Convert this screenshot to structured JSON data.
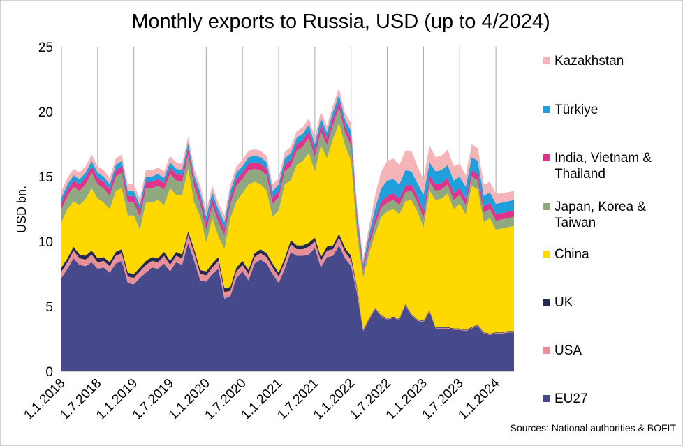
{
  "chart_data": {
    "type": "stacked-area",
    "title": "Monthly exports to Russia, USD (up to 4/2024)",
    "y_label": "USD bn.",
    "source": "Sources: National authorities & BOFIT",
    "categories": [
      "1.1.2018",
      null,
      null,
      null,
      null,
      null,
      "1.7.2018",
      null,
      null,
      null,
      null,
      null,
      "1.1.2019",
      null,
      null,
      null,
      null,
      null,
      "1.7.2019",
      null,
      null,
      null,
      null,
      null,
      "1.1.2020",
      null,
      null,
      null,
      null,
      null,
      "1.7.2020",
      null,
      null,
      null,
      null,
      null,
      "1.1.2021",
      null,
      null,
      null,
      null,
      null,
      "1.7.2021",
      null,
      null,
      null,
      null,
      null,
      "1.1.2022",
      null,
      null,
      null,
      null,
      null,
      "1.7.2022",
      null,
      null,
      null,
      null,
      null,
      "1.1.2023",
      null,
      null,
      null,
      null,
      null,
      "1.7.2023",
      null,
      null,
      null,
      null,
      null,
      "1.1.2024",
      null,
      null,
      null
    ],
    "ylim": [
      0,
      25
    ],
    "yticks": [
      0,
      5,
      10,
      15,
      20,
      25
    ],
    "grid": true,
    "series": [
      {
        "name": "EU27",
        "color": "#474a8a",
        "values": [
          7.2,
          7.9,
          8.7,
          8.2,
          8.1,
          8.4,
          7.9,
          8.0,
          7.6,
          8.3,
          8.5,
          6.8,
          6.7,
          7.2,
          7.6,
          8.0,
          7.9,
          8.3,
          7.7,
          8.4,
          8.2,
          9.9,
          8.5,
          7.0,
          6.9,
          7.5,
          7.9,
          5.6,
          5.8,
          7.2,
          7.7,
          7.0,
          8.3,
          8.6,
          8.3,
          7.5,
          6.8,
          7.9,
          9.2,
          8.9,
          8.9,
          9.0,
          9.5,
          8.0,
          8.8,
          8.9,
          9.7,
          8.7,
          8.1,
          6.0,
          3.1,
          4.0,
          4.8,
          4.2,
          4.0,
          4.1,
          4.0,
          5.1,
          4.3,
          3.9,
          3.8,
          4.6,
          3.3,
          3.3,
          3.3,
          3.2,
          3.2,
          3.1,
          3.3,
          3.5,
          2.9,
          2.8,
          2.9,
          2.9,
          3.0,
          3.0
        ]
      },
      {
        "name": "USA",
        "color": "#e8909a",
        "values": [
          0.5,
          0.5,
          0.6,
          0.5,
          0.5,
          0.6,
          0.5,
          0.5,
          0.5,
          0.6,
          0.6,
          0.5,
          0.5,
          0.5,
          0.6,
          0.5,
          0.5,
          0.6,
          0.5,
          0.5,
          0.5,
          0.6,
          0.6,
          0.5,
          0.5,
          0.5,
          0.6,
          0.5,
          0.4,
          0.5,
          0.5,
          0.5,
          0.5,
          0.5,
          0.5,
          0.5,
          0.5,
          0.5,
          0.6,
          0.5,
          0.5,
          0.6,
          0.5,
          0.5,
          0.5,
          0.5,
          0.6,
          0.5,
          0.5,
          0.3,
          0.05,
          0.05,
          0.05,
          0.05,
          0.05,
          0.05,
          0.05,
          0.05,
          0.05,
          0.05,
          0.05,
          0.05,
          0.05,
          0.05,
          0.05,
          0.05,
          0.05,
          0.05,
          0.05,
          0.05,
          0.05,
          0.05,
          0.05,
          0.05,
          0.05,
          0.05
        ]
      },
      {
        "name": "UK",
        "color": "#252850",
        "values": [
          0.3,
          0.3,
          0.3,
          0.3,
          0.3,
          0.3,
          0.3,
          0.3,
          0.3,
          0.3,
          0.3,
          0.3,
          0.3,
          0.3,
          0.3,
          0.3,
          0.3,
          0.3,
          0.3,
          0.3,
          0.3,
          0.3,
          0.3,
          0.3,
          0.3,
          0.3,
          0.3,
          0.3,
          0.3,
          0.3,
          0.3,
          0.3,
          0.3,
          0.3,
          0.3,
          0.3,
          0.3,
          0.3,
          0.3,
          0.3,
          0.3,
          0.3,
          0.3,
          0.3,
          0.3,
          0.3,
          0.3,
          0.3,
          0.3,
          0.15,
          0.05,
          0.05,
          0.05,
          0.05,
          0.05,
          0.05,
          0.05,
          0.05,
          0.05,
          0.05,
          0.05,
          0.05,
          0.05,
          0.05,
          0.05,
          0.05,
          0.05,
          0.05,
          0.05,
          0.05,
          0.05,
          0.05,
          0.05,
          0.05,
          0.05,
          0.05
        ]
      },
      {
        "name": "China",
        "color": "#ffd800",
        "values": [
          3.5,
          3.8,
          3.5,
          3.8,
          4.4,
          4.8,
          4.6,
          4.2,
          4.1,
          4.7,
          4.7,
          4.4,
          4.5,
          2.9,
          4.5,
          4.2,
          4.5,
          3.6,
          5.6,
          4.4,
          4.6,
          4.8,
          3.6,
          4.1,
          2.2,
          3.5,
          1.6,
          3.0,
          5.3,
          5.1,
          5.2,
          6.6,
          5.5,
          5.0,
          4.8,
          3.6,
          4.8,
          5.7,
          4.6,
          6.2,
          6.5,
          6.9,
          5.1,
          8.6,
          6.8,
          8.2,
          8.5,
          7.9,
          7.3,
          4.0,
          4.0,
          5.0,
          5.7,
          7.6,
          8.2,
          8.3,
          8.0,
          7.9,
          8.8,
          8.3,
          7.2,
          9.2,
          9.8,
          9.9,
          10.3,
          9.2,
          9.6,
          8.9,
          10.9,
          10.4,
          8.5,
          8.9,
          7.9,
          8.0,
          8.0,
          8.1
        ]
      },
      {
        "name": "Japan, Korea & Taiwan",
        "color": "#8fa880",
        "values": [
          1.0,
          1.0,
          1.1,
          1.1,
          1.1,
          1.2,
          1.1,
          1.1,
          1.0,
          1.1,
          1.2,
          1.0,
          1.0,
          1.0,
          1.1,
          1.1,
          1.1,
          1.2,
          1.1,
          1.1,
          1.0,
          1.1,
          1.2,
          1.0,
          1.0,
          1.0,
          1.1,
          1.1,
          1.1,
          1.2,
          1.1,
          1.1,
          1.0,
          1.1,
          1.2,
          1.0,
          1.0,
          1.0,
          1.1,
          1.1,
          1.1,
          1.2,
          1.1,
          1.1,
          1.0,
          1.1,
          1.2,
          1.0,
          1.2,
          0.9,
          0.5,
          0.6,
          0.7,
          0.7,
          0.7,
          0.7,
          0.7,
          0.7,
          0.7,
          0.7,
          0.7,
          0.7,
          0.7,
          0.7,
          0.7,
          0.7,
          0.7,
          0.7,
          0.7,
          0.7,
          0.7,
          0.7,
          0.7,
          0.7,
          0.7,
          0.7
        ]
      },
      {
        "name": "India, Vietnam & Thailand",
        "color": "#e0338a",
        "values": [
          0.5,
          0.5,
          0.5,
          0.5,
          0.5,
          0.5,
          0.5,
          0.5,
          0.5,
          0.5,
          0.5,
          0.5,
          0.5,
          0.5,
          0.5,
          0.5,
          0.5,
          0.5,
          0.5,
          0.5,
          0.5,
          0.5,
          0.5,
          0.5,
          0.5,
          0.5,
          0.5,
          0.5,
          0.5,
          0.5,
          0.5,
          0.5,
          0.5,
          0.5,
          0.5,
          0.5,
          0.5,
          0.5,
          0.5,
          0.5,
          0.5,
          0.5,
          0.5,
          0.5,
          0.5,
          0.5,
          0.5,
          0.5,
          0.5,
          0.4,
          0.3,
          0.4,
          0.5,
          0.5,
          0.5,
          0.5,
          0.5,
          0.5,
          0.5,
          0.5,
          0.5,
          0.5,
          0.5,
          0.5,
          0.5,
          0.5,
          0.5,
          0.5,
          0.5,
          0.5,
          0.5,
          0.5,
          0.5,
          0.5,
          0.5,
          0.5
        ]
      },
      {
        "name": "Türkiye",
        "color": "#1fa0dc",
        "values": [
          0.4,
          0.4,
          0.4,
          0.4,
          0.4,
          0.4,
          0.4,
          0.4,
          0.4,
          0.4,
          0.4,
          0.4,
          0.4,
          0.4,
          0.4,
          0.4,
          0.4,
          0.4,
          0.4,
          0.4,
          0.4,
          0.4,
          0.4,
          0.4,
          0.5,
          0.5,
          0.5,
          0.5,
          0.5,
          0.5,
          0.5,
          0.5,
          0.5,
          0.5,
          0.5,
          0.5,
          0.5,
          0.5,
          0.5,
          0.5,
          0.5,
          0.5,
          0.5,
          0.5,
          0.5,
          0.5,
          0.5,
          0.5,
          0.6,
          0.5,
          0.3,
          0.5,
          0.8,
          1.0,
          1.2,
          1.1,
          1.1,
          1.2,
          1.0,
          1.0,
          1.3,
          1.0,
          1.0,
          1.0,
          1.0,
          1.0,
          0.9,
          0.9,
          1.0,
          1.0,
          0.8,
          0.8,
          0.8,
          0.8,
          0.8,
          0.8
        ]
      },
      {
        "name": "Kazakhstan",
        "color": "#f4b4b8",
        "values": [
          0.5,
          0.5,
          0.5,
          0.5,
          0.5,
          0.5,
          0.5,
          0.5,
          0.5,
          0.5,
          0.5,
          0.5,
          0.5,
          0.5,
          0.5,
          0.5,
          0.5,
          0.5,
          0.5,
          0.5,
          0.5,
          0.5,
          0.5,
          0.5,
          0.5,
          0.5,
          0.5,
          0.5,
          0.5,
          0.5,
          0.5,
          0.5,
          0.5,
          0.5,
          0.5,
          0.5,
          0.5,
          0.5,
          0.5,
          0.5,
          0.5,
          0.5,
          0.5,
          0.5,
          0.5,
          0.5,
          0.5,
          0.5,
          0.6,
          0.5,
          0.4,
          0.6,
          1.0,
          1.3,
          1.5,
          1.6,
          1.5,
          1.5,
          1.6,
          1.3,
          1.2,
          1.3,
          1.1,
          1.1,
          1.2,
          1.1,
          1.0,
          0.9,
          1.0,
          1.0,
          0.9,
          0.8,
          0.8,
          0.7,
          0.7,
          0.7
        ]
      }
    ]
  }
}
